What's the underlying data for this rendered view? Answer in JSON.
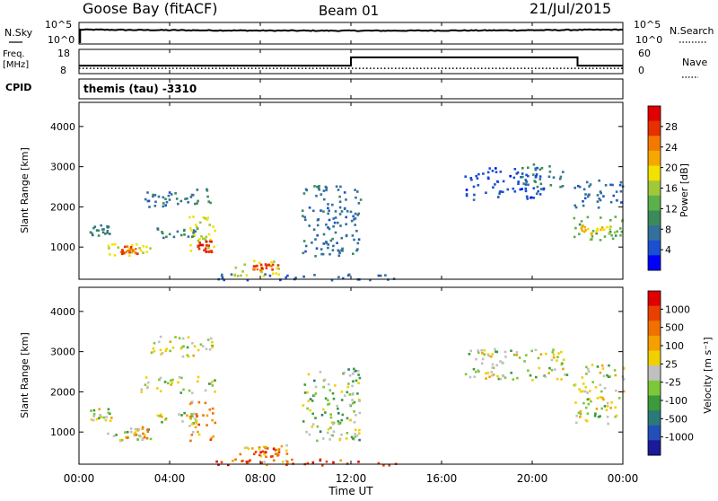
{
  "header": {
    "station": "Goose Bay (fitACF)",
    "beam": "Beam 01",
    "date": "21/Jul/2015"
  },
  "top_panels": {
    "nsky_label": "N.Sky",
    "nsky_ticks": [
      "10^5",
      "10^0"
    ],
    "nsearch_label": "N.Search",
    "nsearch_ticks": [
      "10^5",
      "10^0"
    ],
    "freq_label_1": "Freq.",
    "freq_label_2": "[MHz]",
    "freq_ticks": [
      "18",
      "8"
    ],
    "nave_label": "Nave",
    "nave_ticks": [
      "60",
      "0"
    ],
    "cpid_label": "CPID",
    "cpid_text": "themis (tau) -3310"
  },
  "chart_data": [
    {
      "type": "line",
      "name": "top-noise-frequency",
      "x_range": [
        "00:00",
        "00:00"
      ],
      "nsky_level_log": 3.5,
      "freq": {
        "ylim": [
          8,
          18
        ],
        "segments": [
          {
            "from_hour": 0,
            "to_hour": 12,
            "value": 11
          },
          {
            "from_hour": 12,
            "to_hour": 22,
            "value": 15
          },
          {
            "from_hour": 22,
            "to_hour": 24,
            "value": 11
          }
        ]
      },
      "nave_level": 10
    },
    {
      "type": "heatmap",
      "name": "power",
      "ylabel": "Slant Range [km]",
      "yticks": [
        "4000",
        "3000",
        "2000",
        "1000"
      ],
      "ylim": [
        200,
        4600
      ],
      "xticks": [
        "00:00",
        "04:00",
        "08:00",
        "12:00",
        "16:00",
        "20:00",
        "00:00"
      ],
      "xlim_hours": [
        0,
        24
      ],
      "colorbar": {
        "label": "Power [dB]",
        "ticks": [
          "28",
          "24",
          "20",
          "16",
          "12",
          "8",
          "4"
        ],
        "range": [
          0,
          32
        ],
        "colors": [
          "#0000ff",
          "#1a4fd0",
          "#33709b",
          "#3c8a5a",
          "#5bb04a",
          "#a0c838",
          "#f2e200",
          "#f5a800",
          "#f27a00",
          "#e53000",
          "#e00000"
        ]
      },
      "regions": [
        {
          "t0": 0.4,
          "t1": 1.4,
          "r0": 1300,
          "r1": 1600,
          "level": 8
        },
        {
          "t0": 1.2,
          "t1": 3.4,
          "r0": 800,
          "r1": 1100,
          "level": 18
        },
        {
          "t0": 1.8,
          "t1": 2.6,
          "r0": 850,
          "r1": 1050,
          "level": 26
        },
        {
          "t0": 2.7,
          "t1": 4.0,
          "r0": 2000,
          "r1": 2400,
          "level": 7
        },
        {
          "t0": 4.0,
          "t1": 6.0,
          "r0": 2100,
          "r1": 2500,
          "level": 8
        },
        {
          "t0": 3.4,
          "t1": 5.2,
          "r0": 1200,
          "r1": 1500,
          "level": 9
        },
        {
          "t0": 4.8,
          "t1": 6.0,
          "r0": 800,
          "r1": 1800,
          "level": 18
        },
        {
          "t0": 5.2,
          "t1": 5.9,
          "r0": 900,
          "r1": 1200,
          "level": 29
        },
        {
          "t0": 6.8,
          "t1": 9.0,
          "r0": 300,
          "r1": 700,
          "level": 18
        },
        {
          "t0": 7.4,
          "t1": 8.8,
          "r0": 450,
          "r1": 600,
          "level": 28
        },
        {
          "t0": 9.8,
          "t1": 12.4,
          "r0": 800,
          "r1": 2600,
          "level": 7
        },
        {
          "t0": 6.0,
          "t1": 14.0,
          "r0": 200,
          "r1": 350,
          "level": 6
        },
        {
          "t0": 17.0,
          "t1": 20.5,
          "r0": 2200,
          "r1": 3000,
          "level": 4
        },
        {
          "t0": 19.5,
          "t1": 21.4,
          "r0": 2500,
          "r1": 3100,
          "level": 9
        },
        {
          "t0": 21.8,
          "t1": 24.0,
          "r0": 1200,
          "r1": 1800,
          "level": 13
        },
        {
          "t0": 22.1,
          "t1": 23.4,
          "r0": 1350,
          "r1": 1550,
          "level": 21
        },
        {
          "t0": 21.8,
          "t1": 24.0,
          "r0": 2000,
          "r1": 2700,
          "level": 6
        }
      ]
    },
    {
      "type": "heatmap",
      "name": "velocity",
      "ylabel": "Slant Range [km]",
      "yticks": [
        "4000",
        "3000",
        "2000",
        "1000"
      ],
      "ylim": [
        200,
        4600
      ],
      "xlabel": "Time UT",
      "xticks": [
        "00:00",
        "04:00",
        "08:00",
        "12:00",
        "16:00",
        "20:00",
        "00:00"
      ],
      "xlim_hours": [
        0,
        24
      ],
      "colorbar": {
        "label": "Velocity [m s⁻¹]",
        "ticks": [
          "1000",
          "500",
          "100",
          "25",
          "-25",
          "-100",
          "-500",
          "-1000"
        ],
        "colors": [
          "#1a1a9a",
          "#224fb8",
          "#2b7a78",
          "#3c9a3c",
          "#7cc83a",
          "#c0c0c0",
          "#f0d000",
          "#f5a000",
          "#f07000",
          "#e84000",
          "#e00000"
        ]
      },
      "regions": [
        {
          "t0": 0.4,
          "t1": 1.4,
          "r0": 1300,
          "r1": 1600,
          "level": 5
        },
        {
          "t0": 1.2,
          "t1": 3.4,
          "r0": 800,
          "r1": 1100,
          "level": 4
        },
        {
          "t0": 2.0,
          "t1": 3.0,
          "r0": 850,
          "r1": 1150,
          "level": 7
        },
        {
          "t0": 2.7,
          "t1": 6.0,
          "r0": 2000,
          "r1": 2400,
          "level": 5
        },
        {
          "t0": 3.4,
          "t1": 5.2,
          "r0": 1200,
          "r1": 1500,
          "level": 5
        },
        {
          "t0": 4.8,
          "t1": 6.0,
          "r0": 800,
          "r1": 1800,
          "level": 7
        },
        {
          "t0": 6.8,
          "t1": 9.2,
          "r0": 250,
          "r1": 700,
          "level": 7
        },
        {
          "t0": 7.6,
          "t1": 8.8,
          "r0": 400,
          "r1": 650,
          "level": 8
        },
        {
          "t0": 9.8,
          "t1": 12.4,
          "r0": 800,
          "r1": 2600,
          "level": 4
        },
        {
          "t0": 6.0,
          "t1": 14.0,
          "r0": 200,
          "r1": 350,
          "level": 9
        },
        {
          "t0": 3.0,
          "t1": 6.0,
          "r0": 2900,
          "r1": 3400,
          "level": 5
        },
        {
          "t0": 17.0,
          "t1": 21.5,
          "r0": 2300,
          "r1": 3100,
          "level": 5
        },
        {
          "t0": 21.8,
          "t1": 24.0,
          "r0": 1200,
          "r1": 1900,
          "level": 5
        },
        {
          "t0": 21.8,
          "t1": 24.0,
          "r0": 2000,
          "r1": 2700,
          "level": 5
        }
      ]
    }
  ]
}
